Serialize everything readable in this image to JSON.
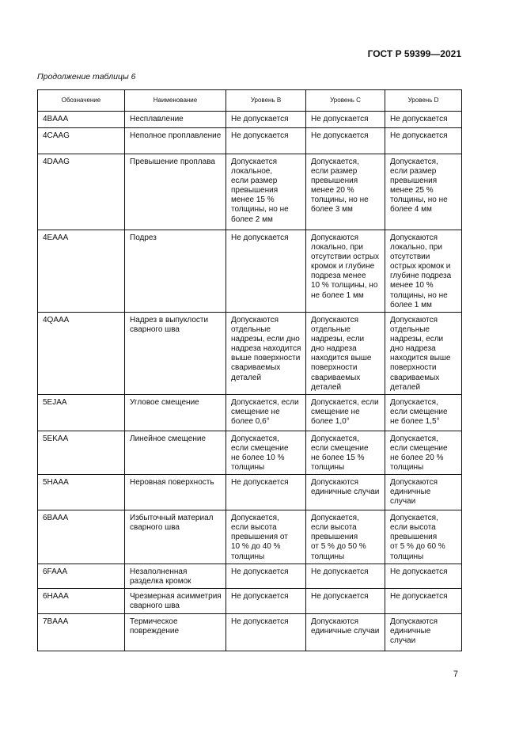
{
  "header": {
    "doc_id": "ГОСТ Р 59399—2021"
  },
  "caption": "Продолжение таблицы 6",
  "table": {
    "columns": [
      "Обозначение",
      "Наименование",
      "Уровень B",
      "Уровень C",
      "Уровень D"
    ],
    "rows": [
      [
        "4BAAA",
        "Несплавление",
        "Не допускается",
        "Не допускается",
        "Не допускается"
      ],
      [
        "4CAAG",
        "Неполное проплавление",
        "Не допускается",
        "Не допускается",
        "Не допускается"
      ],
      [
        "4DAAG",
        "Превышение проплава",
        "Допускается\nлокальное,\nесли размер\nпревышения\nменее 15 %\nтолщины, но не\nболее 2 мм",
        "Допускается,\nесли размер\nпревышения\nменее 20 %\nтолщины, но не\nболее 3 мм",
        "Допускается,\nесли размер\nпревышения\nменее 25 %\nтолщины, но не\nболее 4 мм"
      ],
      [
        "4EAAA",
        "Подрез",
        "Не допускается",
        "Допускаются\nлокально, при\nотсутствии острых\nкромок и глубине\nподреза менее\n10 % толщины, но\nне более 1 мм",
        "Допускаются\nлокально, при\nотсутствии\nострых кромок и\nглубине подреза\nменее 10 %\nтолщины, но не\nболее 1 мм"
      ],
      [
        "4QAAA",
        "Надрез в выпуклости\nсварного шва",
        "Допускаются\nотдельные\nнадрезы, если дно\nнадреза находится\nвыше поверхности\nсвариваемых\nдеталей",
        "Допускаются\nотдельные\nнадрезы, если\nдно надреза\nнаходится выше\nповерхности\nсвариваемых\nдеталей",
        "Допускаются\nотдельные\nнадрезы, если\nдно надреза\nнаходится выше\nповерхности\nсвариваемых\nдеталей"
      ],
      [
        "5EJAA",
        "Угловое смещение",
        "Допускается, если\nсмещение не\nболее 0,6°",
        "Допускается, если\nсмещение не\nболее 1,0°",
        "Допускается,\nесли смещение\nне более 1,5°"
      ],
      [
        "5EKAA",
        "Линейное смещение",
        "Допускается,\nесли смещение\nне более 10 %\nтолщины",
        "Допускается,\nесли смещение\nне более 15 %\nтолщины",
        "Допускается,\nесли смещение\nне более 20 %\nтолщины"
      ],
      [
        "5HAAA",
        "Неровная поверхность",
        "Не допускается",
        "Допускаются\nединичные случаи",
        "Допускаются\nединичные\nслучаи"
      ],
      [
        "6BAAA",
        "Избыточный материал\nсварного шва",
        "Допускается,\nесли высота\nпревышения от\n10 % до 40 %\nтолщины",
        "Допускается,\nесли высота\nпревышения\nот 5 % до 50 %\nтолщины",
        "Допускается,\nесли высота\nпревышения\nот 5 % до 60 %\nтолщины"
      ],
      [
        "6FAAA",
        "Незаполненная\nразделка кромок",
        "Не допускается",
        "Не допускается",
        "Не допускается"
      ],
      [
        "6HAAA",
        "Чрезмерная асимметрия\nсварного шва",
        "Не допускается",
        "Не допускается",
        "Не допускается"
      ],
      [
        "7BAAA",
        "Термическое\nповреждение",
        "Не допускается",
        "Допускаются\nединичные случаи",
        "Допускаются\nединичные\nслучаи"
      ]
    ]
  },
  "footer": {
    "page_number": "7"
  }
}
